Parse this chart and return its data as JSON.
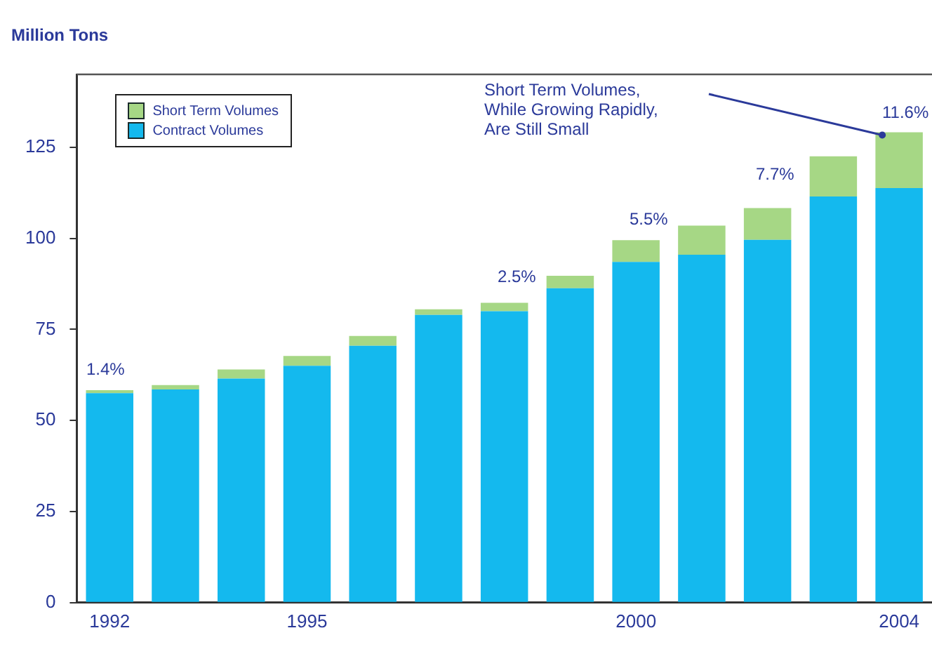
{
  "chart_data": {
    "type": "bar",
    "ylabel": "Million Tons",
    "categories": [
      "1992",
      null,
      null,
      "1995",
      null,
      null,
      null,
      null,
      "2000",
      null,
      null,
      null,
      "2004"
    ],
    "stacked": true,
    "series": [
      {
        "name": "Contract  Volumes",
        "color": "#14b9ee",
        "values": [
          57.5,
          58.5,
          61.5,
          65,
          70.5,
          79,
          80,
          86.3,
          93.5,
          95.5,
          99.6,
          111.5,
          113.8
        ]
      },
      {
        "name": "Short Term Volumes",
        "color": "#a6d785",
        "values": [
          0.8,
          1.2,
          2.5,
          2.7,
          2.7,
          1.5,
          2.3,
          3.4,
          6,
          8,
          8.7,
          11,
          15.3
        ]
      }
    ],
    "ylim": [
      0,
      145
    ],
    "yticks": [
      0,
      25,
      50,
      75,
      100,
      125
    ],
    "legend": "top left",
    "annotations": [
      "Short Term Volumes,\nWhile Growing Rapidly,\nAre Still Small",
      "1.4%",
      "2.5%",
      "5.5%",
      "7.7%",
      "11.6%"
    ]
  }
}
